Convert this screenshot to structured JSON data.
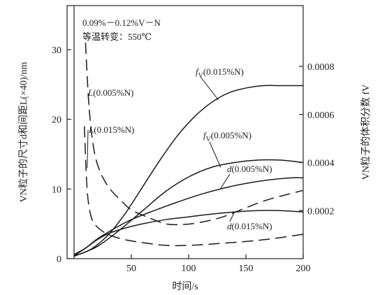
{
  "chart_data": {
    "type": "line",
    "title_lines": [
      "0.09%－0.12%V－N",
      "等温转变：550℃"
    ],
    "xlabel": "时间/s",
    "ylabel_left": "VN粒子的尺寸d和间距L(×40)/nm",
    "ylabel_right": "VN粒子的体积分数 fV",
    "xlim": [
      0,
      200
    ],
    "ylim_left": [
      0,
      30
    ],
    "ylim_right": [
      0,
      0.0008
    ],
    "x_ticks": [
      "50",
      "100",
      "150",
      "200"
    ],
    "y_ticks_left": [
      "0",
      "10",
      "20",
      "30"
    ],
    "y_ticks_right": [
      "0.0002",
      "0.0004",
      "0.0006",
      "0.0008"
    ],
    "series": [
      {
        "name": "L(0.005%N)",
        "axis": "left",
        "dash": true,
        "x": [
          10,
          13,
          17,
          22,
          30,
          40,
          50,
          65,
          80,
          95,
          110,
          130,
          150,
          170,
          200
        ],
        "y": [
          31,
          22,
          16,
          12.8,
          10.3,
          8.5,
          7.0,
          5.9,
          5.0,
          4.9,
          5.2,
          6.0,
          7.3,
          8.5,
          9.8
        ]
      },
      {
        "name": "L(0.015%N)",
        "axis": "left",
        "dash": true,
        "x": [
          9,
          11,
          13,
          16,
          20,
          26,
          34,
          45,
          60,
          80,
          100,
          120,
          145,
          170,
          200
        ],
        "y": [
          19,
          11,
          7.5,
          5.5,
          4.6,
          3.8,
          3.2,
          2.7,
          2.3,
          1.9,
          1.9,
          2.1,
          2.4,
          2.8,
          3.5
        ]
      },
      {
        "name": "fV(0.015%N)",
        "axis": "right",
        "dash": false,
        "x": [
          0,
          15,
          30,
          45,
          60,
          75,
          90,
          105,
          120,
          135,
          150,
          165,
          180,
          200
        ],
        "y": [
          1e-05,
          4e-05,
          0.0001,
          0.00019,
          0.0003,
          0.00041,
          0.00051,
          0.00059,
          0.00065,
          0.00069,
          0.00071,
          0.00072,
          0.00072,
          0.00072
        ]
      },
      {
        "name": "fV(0.005%N)",
        "axis": "right",
        "dash": false,
        "x": [
          0,
          20,
          40,
          60,
          80,
          100,
          120,
          140,
          160,
          180,
          200
        ],
        "y": [
          1e-05,
          5e-05,
          0.00012,
          0.0002,
          0.00028,
          0.00034,
          0.00038,
          0.0004,
          0.00041,
          0.00041,
          0.0004
        ]
      },
      {
        "name": "d(0.005%N)",
        "axis": "left",
        "dash": false,
        "x": [
          0,
          10,
          20,
          35,
          50,
          70,
          90,
          110,
          130,
          150,
          170,
          190,
          200
        ],
        "y": [
          0.6,
          1.5,
          2.8,
          4.3,
          5.6,
          6.9,
          8.1,
          9.2,
          10.1,
          10.8,
          11.3,
          11.6,
          11.6
        ]
      },
      {
        "name": "d(0.015%N)",
        "axis": "left",
        "dash": false,
        "x": [
          0,
          10,
          20,
          30,
          45,
          60,
          80,
          100,
          120,
          140,
          160,
          180,
          200
        ],
        "y": [
          0.4,
          1.5,
          2.7,
          3.6,
          4.4,
          5.0,
          5.6,
          6.0,
          6.4,
          6.7,
          6.9,
          6.9,
          6.7
        ]
      }
    ],
    "annotations": [
      {
        "main": "L",
        "sub": "",
        "rest": "(0.005%N)",
        "for": "L(0.005%N)",
        "at_x": 13,
        "at_y": 22
      },
      {
        "main": "L",
        "sub": "",
        "rest": "(0.015%N)",
        "for": "L(0.015%N)",
        "at_x": 11.5,
        "at_y": 13
      },
      {
        "main": "f",
        "sub": "V",
        "rest": "(0.015%N)",
        "for": "fV(0.015%N)",
        "at_x": 126,
        "at_y": 0.00066
      },
      {
        "main": "f",
        "sub": "V",
        "rest": "(0.005%N)",
        "for": "fV(0.005%N)",
        "at_x": 128,
        "at_y": 0.00038
      },
      {
        "main": "d",
        "sub": "",
        "rest": "(0.005%N)",
        "for": "d(0.005%N)",
        "at_x": 128,
        "at_y": 10.1
      },
      {
        "main": "d",
        "sub": "",
        "rest": "(0.015%N)",
        "for": "d(0.015%N)",
        "at_x": 140,
        "at_y": 6.7
      }
    ]
  }
}
